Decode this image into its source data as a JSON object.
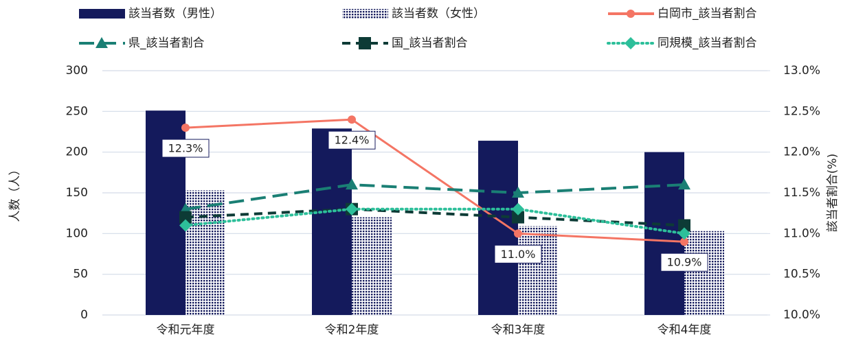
{
  "chart_data": {
    "type": "bar",
    "categories": [
      "令和元年度",
      "令和2年度",
      "令和3年度",
      "令和4年度"
    ],
    "ylabel": "人数（人）",
    "y2label": "該当者割合(%)",
    "ylim": [
      0,
      300
    ],
    "yticks": [
      0,
      50,
      100,
      150,
      200,
      250,
      300
    ],
    "y2lim": [
      10,
      13
    ],
    "y2ticks": [
      {
        "value": 10,
        "label": "10.0%"
      },
      {
        "value": 10.5,
        "label": "10.5%"
      },
      {
        "value": 11,
        "label": "11.0%"
      },
      {
        "value": 11.5,
        "label": "11.5%"
      },
      {
        "value": 12,
        "label": "12.0%"
      },
      {
        "value": 12.5,
        "label": "12.5%"
      },
      {
        "value": 13,
        "label": "13.0%"
      }
    ],
    "grid": true,
    "legend": "top",
    "series": [
      {
        "name": "該当者数（男性）",
        "type": "bar",
        "color": "#141a5c",
        "values": [
          251,
          229,
          214,
          200
        ]
      },
      {
        "name": "該当者数（女性）",
        "type": "bar",
        "color": "#141a5c",
        "pattern": "dots",
        "values": [
          153,
          120,
          109,
          103
        ]
      },
      {
        "name": "白岡市_該当者割合",
        "type": "line",
        "axis": "y2",
        "color": "#f47564",
        "marker": "circle",
        "dash": "solid",
        "values": [
          12.3,
          12.4,
          11.0,
          10.9
        ],
        "value_labels": [
          "12.3%",
          "12.4%",
          "11.0%",
          "10.9%"
        ]
      },
      {
        "name": "県_該当者割合",
        "type": "line",
        "axis": "y2",
        "color": "#1a7f74",
        "marker": "triangle",
        "dash": "long",
        "values": [
          11.3,
          11.6,
          11.5,
          11.6
        ]
      },
      {
        "name": "国_該当者割合",
        "type": "line",
        "axis": "y2",
        "color": "#0d3b36",
        "marker": "square",
        "dash": "dash",
        "values": [
          11.2,
          11.3,
          11.2,
          11.1
        ]
      },
      {
        "name": "同規模_該当者割合",
        "type": "line",
        "axis": "y2",
        "color": "#2dbf9a",
        "marker": "diamond",
        "dash": "dot",
        "values": [
          11.1,
          11.3,
          11.3,
          11.0
        ]
      }
    ]
  }
}
